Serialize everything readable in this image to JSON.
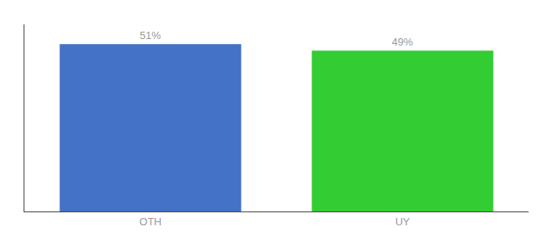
{
  "chart_data": {
    "type": "bar",
    "categories": [
      "OTH",
      "UY"
    ],
    "values": [
      51,
      49
    ],
    "value_labels": [
      "51%",
      "49%"
    ],
    "colors": [
      "#4472c4",
      "#33cc33"
    ],
    "ylim": [
      0,
      57
    ],
    "grid": false,
    "tick_labels": "x",
    "data_labels": true
  }
}
